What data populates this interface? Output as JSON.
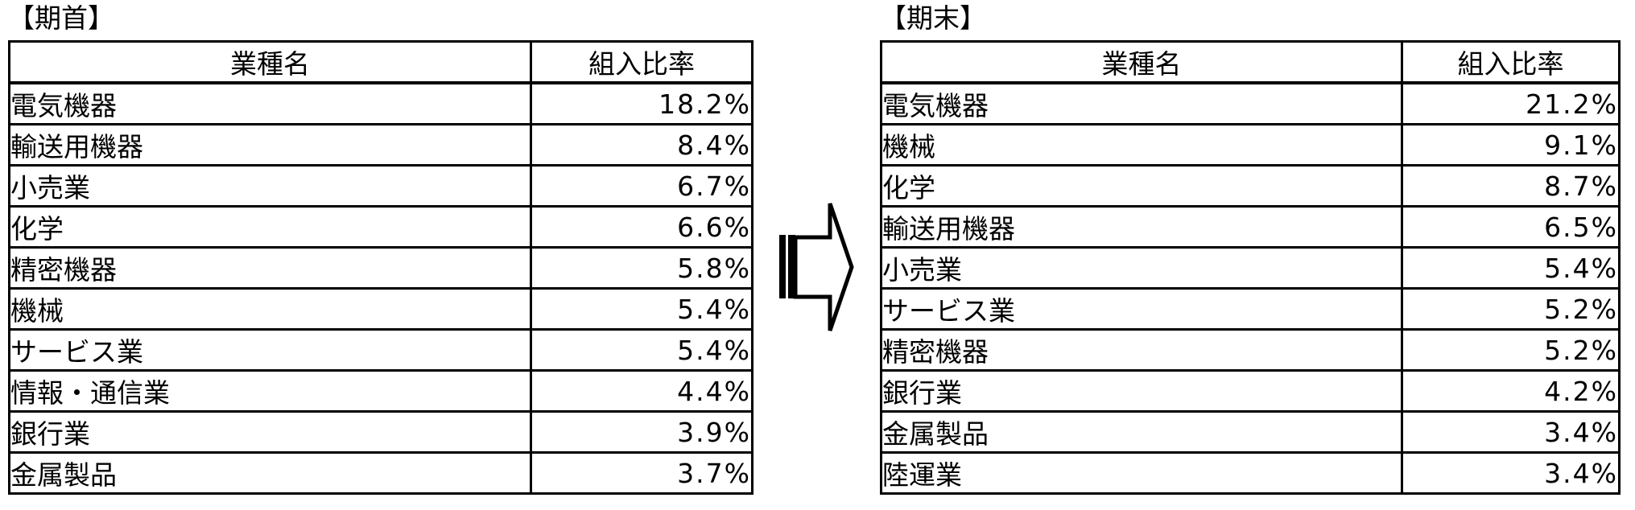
{
  "page": {
    "background_color": "#ffffff",
    "text_color": "#000000",
    "border_color": "#000000"
  },
  "period_start_table": {
    "title": "【期首】",
    "columns": {
      "industry": "業種名",
      "ratio": "組入比率"
    },
    "rows": [
      {
        "industry": "電気機器",
        "ratio": "18.2%"
      },
      {
        "industry": "輸送用機器",
        "ratio": "8.4%"
      },
      {
        "industry": "小売業",
        "ratio": "6.7%"
      },
      {
        "industry": "化学",
        "ratio": "6.6%"
      },
      {
        "industry": "精密機器",
        "ratio": "5.8%"
      },
      {
        "industry": "機械",
        "ratio": "5.4%"
      },
      {
        "industry": "サービス業",
        "ratio": "5.4%"
      },
      {
        "industry": "情報・通信業",
        "ratio": "4.4%"
      },
      {
        "industry": "銀行業",
        "ratio": "3.9%"
      },
      {
        "industry": "金属製品",
        "ratio": "3.7%"
      }
    ]
  },
  "period_end_table": {
    "title": "【期末】",
    "columns": {
      "industry": "業種名",
      "ratio": "組入比率"
    },
    "rows": [
      {
        "industry": "電気機器",
        "ratio": "21.2%"
      },
      {
        "industry": "機械",
        "ratio": "9.1%"
      },
      {
        "industry": "化学",
        "ratio": "8.7%"
      },
      {
        "industry": "輸送用機器",
        "ratio": "6.5%"
      },
      {
        "industry": "小売業",
        "ratio": "5.4%"
      },
      {
        "industry": "サービス業",
        "ratio": "5.2%"
      },
      {
        "industry": "精密機器",
        "ratio": "5.2%"
      },
      {
        "industry": "銀行業",
        "ratio": "4.2%"
      },
      {
        "industry": "金属製品",
        "ratio": "3.4%"
      },
      {
        "industry": "陸運業",
        "ratio": "3.4%"
      }
    ]
  },
  "arrow": {
    "icon": "block-arrow-right",
    "direction": "right",
    "color": "#000000"
  }
}
